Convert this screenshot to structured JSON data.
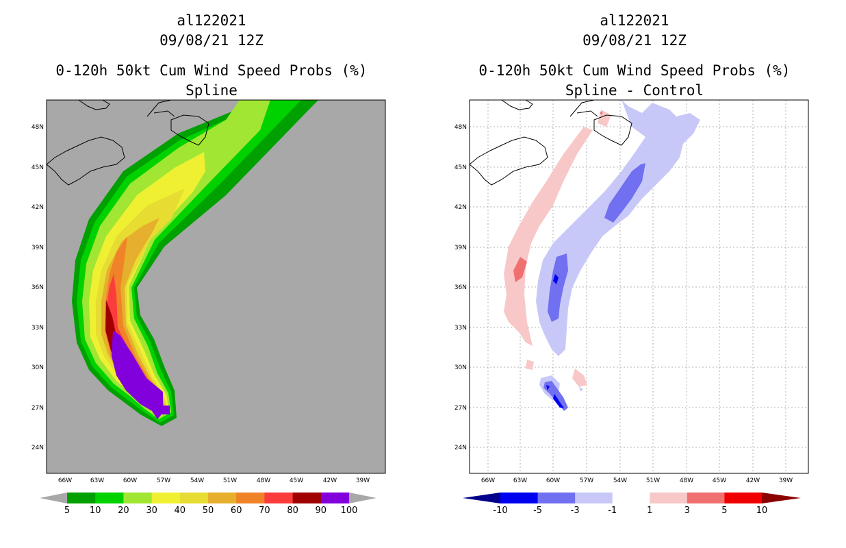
{
  "panels": [
    {
      "id": "spline",
      "storm_id": "al122021",
      "datetime": "09/08/21 12Z",
      "product": "0-120h 50kt Cum Wind Speed Probs (%)",
      "subtitle": "Spline",
      "lat_labels": [
        "48N",
        "45N",
        "42N",
        "39N",
        "36N",
        "33N",
        "30N",
        "27N",
        "24N"
      ],
      "lon_labels": [
        "66W",
        "63W",
        "60W",
        "57W",
        "54W",
        "51W",
        "48W",
        "45W",
        "42W",
        "39W"
      ],
      "colorbar": {
        "labels": [
          "5",
          "10",
          "20",
          "30",
          "40",
          "50",
          "60",
          "70",
          "80",
          "90",
          "100"
        ],
        "colors": [
          "#00a000",
          "#00d200",
          "#a0e632",
          "#f0f032",
          "#e6dc32",
          "#e6af2d",
          "#f08228",
          "#fa3c3c",
          "#a00000",
          "#8200dc"
        ],
        "under_color": "#a8a8a8",
        "over_color": "#a8a8a8"
      },
      "background": "#a8a8a8"
    },
    {
      "id": "diff",
      "storm_id": "al122021",
      "datetime": "09/08/21 12Z",
      "product": "0-120h 50kt Cum Wind Speed Probs (%)",
      "subtitle": "Spline - Control",
      "lat_labels": [
        "48N",
        "45N",
        "42N",
        "39N",
        "36N",
        "33N",
        "30N",
        "27N",
        "24N"
      ],
      "lon_labels": [
        "66W",
        "63W",
        "60W",
        "57W",
        "54W",
        "51W",
        "48W",
        "45W",
        "42W",
        "39W"
      ],
      "colorbar": {
        "labels": [
          "-10",
          "-5",
          "-3",
          "-1",
          "1",
          "3",
          "5",
          "10"
        ],
        "colors": [
          "#0000f0",
          "#7070f0",
          "#c8c8f8",
          "#ffffff",
          "#f8c8c8",
          "#f07070",
          "#f00000"
        ],
        "under_color": "#00008c",
        "over_color": "#8c0000"
      },
      "background": "#ffffff"
    }
  ]
}
